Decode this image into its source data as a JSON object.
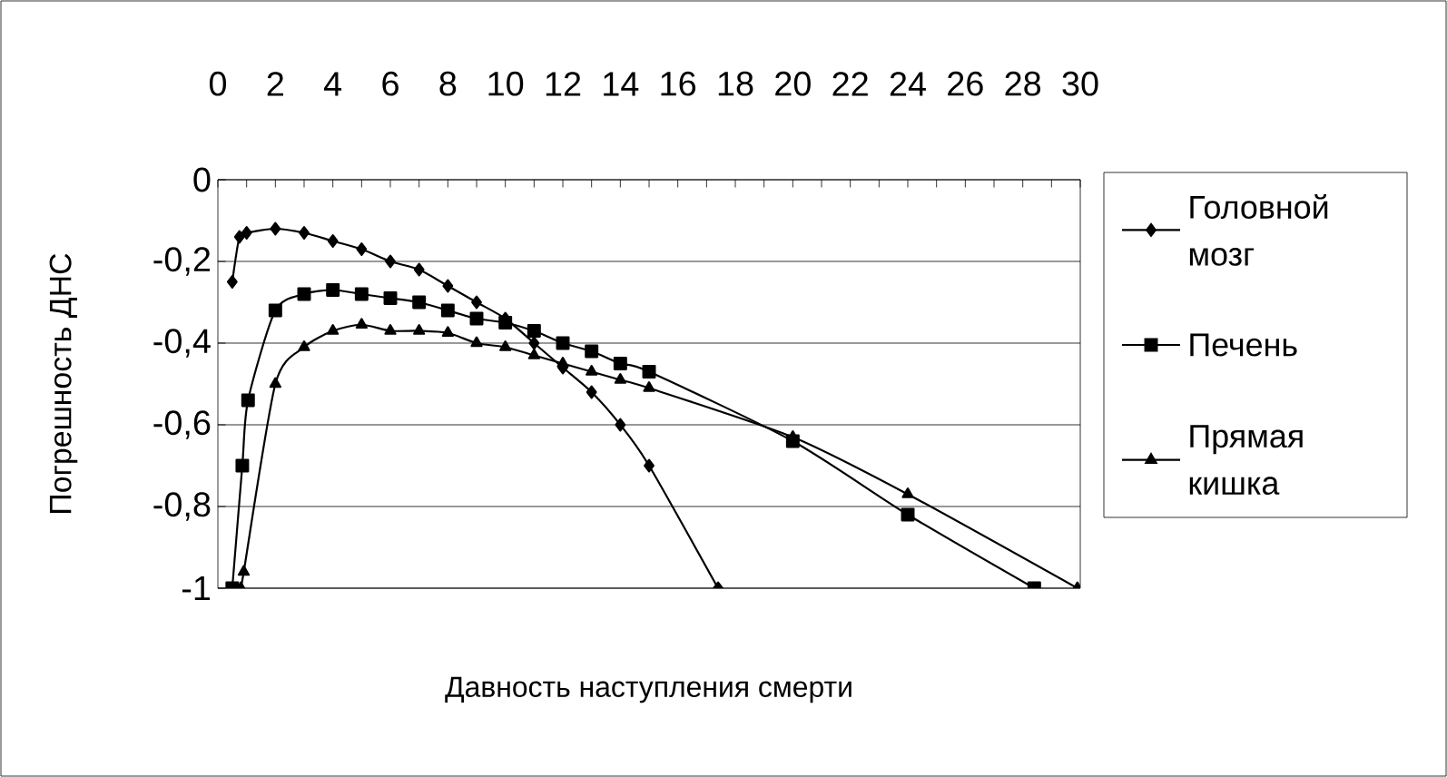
{
  "chart_data": {
    "type": "line",
    "xlabel": "Давность наступления смерти",
    "ylabel": "Погрешность ДНС",
    "xlim": [
      0,
      30
    ],
    "ylim": [
      -1,
      0
    ],
    "xticks": [
      0,
      {
        "value": 1,
        "label": null
      },
      2,
      {
        "value": 3,
        "label": null
      },
      4,
      {
        "value": 5,
        "label": null
      },
      6,
      {
        "value": 7,
        "label": null
      },
      8,
      {
        "value": 9,
        "label": null
      },
      10,
      {
        "value": 11,
        "label": null
      },
      12,
      {
        "value": 13,
        "label": null
      },
      14,
      {
        "value": 15,
        "label": null
      },
      16,
      {
        "value": 17,
        "label": null
      },
      18,
      {
        "value": 19,
        "label": null
      },
      20,
      {
        "value": 21,
        "label": null
      },
      22,
      {
        "value": 23,
        "label": null
      },
      24,
      {
        "value": 25,
        "label": null
      },
      26,
      {
        "value": 27,
        "label": null
      },
      28,
      {
        "value": 29,
        "label": null
      },
      30
    ],
    "yticks": [
      {
        "value": -1,
        "label": "-1"
      },
      {
        "value": -0.8,
        "label": "-0,8"
      },
      {
        "value": -0.6,
        "label": "-0,6"
      },
      {
        "value": -0.4,
        "label": "-0,4"
      },
      {
        "value": -0.2,
        "label": "-0,2"
      },
      0
    ],
    "grid": "y",
    "legend": "right",
    "series": [
      {
        "name": "Головной мозг",
        "color": "#000000",
        "marker": "diamond",
        "x": [
          0.5,
          0.75,
          1,
          2,
          3,
          4,
          5,
          6,
          7,
          8,
          9,
          10,
          11,
          12,
          13,
          14,
          15,
          17.4
        ],
        "values": [
          -0.25,
          -0.14,
          -0.13,
          -0.12,
          -0.13,
          -0.15,
          -0.17,
          -0.2,
          -0.22,
          -0.26,
          -0.3,
          -0.34,
          -0.4,
          -0.46,
          -0.52,
          -0.6,
          -0.7,
          -1
        ]
      },
      {
        "name": "Печень",
        "color": "#000000",
        "marker": "square",
        "x": [
          0.5,
          0.85,
          1.05,
          2,
          3,
          4,
          5,
          6,
          7,
          8,
          9,
          10,
          11,
          12,
          13,
          14,
          15,
          20,
          24,
          28.4
        ],
        "values": [
          -1,
          -0.7,
          -0.54,
          -0.32,
          -0.28,
          -0.27,
          -0.28,
          -0.29,
          -0.3,
          -0.32,
          -0.34,
          -0.35,
          -0.37,
          -0.4,
          -0.42,
          -0.45,
          -0.47,
          -0.64,
          -0.82,
          -1
        ]
      },
      {
        "name": "Прямая кишка",
        "color": "#000000",
        "marker": "triangle",
        "x": [
          0.8,
          0.9,
          2,
          3,
          4,
          5,
          6,
          7,
          8,
          9,
          10,
          11,
          12,
          13,
          14,
          15,
          20,
          24,
          29.9
        ],
        "values": [
          -1,
          -0.96,
          -0.5,
          -0.41,
          -0.37,
          -0.355,
          -0.37,
          -0.37,
          -0.375,
          -0.4,
          -0.41,
          -0.43,
          -0.45,
          -0.47,
          -0.49,
          -0.51,
          -0.63,
          -0.77,
          -1
        ]
      }
    ]
  }
}
